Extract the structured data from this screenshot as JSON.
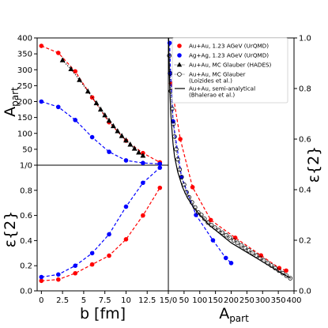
{
  "chart_data": {
    "type": "scatter",
    "panels": {
      "top_left": {
        "ylabel": "A_part",
        "xlim": [
          -0.5,
          15.0
        ],
        "ylim": [
          0,
          400
        ],
        "y_ticks": [
          "400",
          "350",
          "300",
          "250",
          "200",
          "150",
          "100",
          "50"
        ],
        "series": [
          {
            "name": "Au+Au, 1.23 AGeV (UrQMD)",
            "color": "#ff0000",
            "marker": "circle",
            "line": "dashed",
            "x": [
              0,
              2,
              4,
              6,
              8,
              10,
              12,
              14
            ],
            "y": [
              375,
              353,
              295,
              213,
              135,
              77,
              38,
              9
            ]
          },
          {
            "name": "Ag+Ag, 1.23 AGeV (UrQMD)",
            "color": "#0000ff",
            "marker": "circle",
            "line": "dashed",
            "x": [
              0,
              2,
              4,
              6,
              8,
              10,
              12,
              14
            ],
            "y": [
              200,
              183,
              142,
              88,
              42,
              15,
              7,
              4
            ]
          },
          {
            "name": "Au+Au, MC Glauber (HADES)",
            "color": "#000000",
            "marker": "triangle",
            "line": "dotted",
            "x": [
              2.5,
              3.5,
              4.5,
              5.5,
              6.5,
              7.0,
              7.5,
              8.0,
              8.5,
              9.0,
              9.5,
              10.0,
              10.5,
              11.0,
              11.5,
              12.0
            ],
            "y": [
              330,
              302,
              268,
              232,
              195,
              175,
              157,
              140,
              123,
              107,
              92,
              78,
              65,
              52,
              40,
              30
            ]
          }
        ]
      },
      "bottom_left": {
        "ylabel": "ε{2}",
        "xlabel": "b [fm]",
        "xlim": [
          -0.5,
          15.0
        ],
        "ylim": [
          0,
          1
        ],
        "y_ticks": [
          "1/0",
          "0.8",
          "0.6",
          "0.4",
          "0.2",
          "0.0"
        ],
        "x_ticks": [
          "0",
          "2.5",
          "5",
          "7.5",
          "10",
          "12.5",
          "15/0"
        ],
        "series": [
          {
            "name": "Au+Au, 1.23 AGeV (UrQMD)",
            "color": "#ff0000",
            "x": [
              0,
              2,
              4,
              6,
              8,
              10,
              12,
              14
            ],
            "y": [
              0.08,
              0.09,
              0.14,
              0.21,
              0.28,
              0.41,
              0.6,
              0.82
            ]
          },
          {
            "name": "Ag+Ag, 1.23 AGeV (UrQMD)",
            "color": "#0000ff",
            "x": [
              0,
              2,
              4,
              6,
              8,
              10,
              12,
              14
            ],
            "y": [
              0.11,
              0.13,
              0.2,
              0.3,
              0.45,
              0.67,
              0.86,
              0.98
            ]
          }
        ]
      },
      "right": {
        "ylabel": "ε{2}",
        "xlabel": "A_part",
        "xlim": [
          0,
          400
        ],
        "ylim": [
          0,
          1
        ],
        "x_ticks": [
          "50",
          "100",
          "150",
          "200",
          "250",
          "300",
          "350",
          "400"
        ],
        "y_ticks": [
          "1.0",
          "0.8",
          "0.6",
          "0.4",
          "0.2",
          "0.0"
        ],
        "series": [
          {
            "name": "Au+Au, 1.23 AGeV (UrQMD)",
            "color": "#ff0000",
            "x": [
              9,
              38,
              77,
              135,
              213,
              295,
              353,
              375
            ],
            "y": [
              0.82,
              0.6,
              0.41,
              0.28,
              0.21,
              0.14,
              0.09,
              0.08
            ]
          },
          {
            "name": "Ag+Ag, 1.23 AGeV (UrQMD)",
            "color": "#0000ff",
            "x": [
              4,
              7,
              15,
              42,
              88,
              142,
              183,
              200
            ],
            "y": [
              0.98,
              0.86,
              0.67,
              0.45,
              0.3,
              0.2,
              0.13,
              0.11
            ]
          },
          {
            "name": "Au+Au, MC Glauber (Loizides et al.)",
            "color": "#000000",
            "marker": "open-circle",
            "line": "dotted",
            "x": [
              3,
              5,
              8,
              12,
              16,
              20,
              25,
              30,
              36,
              42,
              50,
              58,
              66,
              75,
              85,
              95,
              105,
              115,
              126,
              137,
              148,
              160,
              172,
              184,
              196,
              208,
              220,
              232,
              244,
              256,
              268,
              280,
              292,
              304,
              316,
              328,
              340,
              352,
              364,
              376,
              388
            ],
            "y": [
              0.93,
              0.86,
              0.79,
              0.72,
              0.66,
              0.61,
              0.56,
              0.52,
              0.48,
              0.45,
              0.42,
              0.39,
              0.37,
              0.35,
              0.33,
              0.31,
              0.3,
              0.285,
              0.27,
              0.26,
              0.25,
              0.24,
              0.23,
              0.22,
              0.21,
              0.2,
              0.19,
              0.18,
              0.17,
              0.16,
              0.15,
              0.14,
              0.13,
              0.12,
              0.11,
              0.1,
              0.09,
              0.08,
              0.07,
              0.06,
              0.05
            ]
          },
          {
            "name": "Au+Au, semi-analytical (Bhalerao et al.)",
            "color": "#000000",
            "marker": "none",
            "line": "solid",
            "x": [
              1,
              2,
              4,
              7,
              10,
              15,
              20,
              30,
              45,
              60,
              80,
              100,
              130,
              160,
              200,
              240,
              280,
              320,
              360,
              390
            ],
            "y": [
              1.0,
              0.92,
              0.82,
              0.72,
              0.66,
              0.58,
              0.53,
              0.47,
              0.41,
              0.37,
              0.33,
              0.3,
              0.26,
              0.23,
              0.19,
              0.16,
              0.13,
              0.1,
              0.07,
              0.05
            ]
          }
        ]
      }
    },
    "legend": {
      "placement": "top-right",
      "entries": [
        {
          "label": "Au+Au, 1.23 AGeV (UrQMD)",
          "marker": "circle",
          "color": "#ff0000"
        },
        {
          "label": "Ag+Ag, 1.23 AGeV (UrQMD)",
          "marker": "circle",
          "color": "#0000ff"
        },
        {
          "label": "Au+Au, MC Glauber (HADES)",
          "marker": "triangle",
          "color": "#000000"
        },
        {
          "label": "Au+Au, MC Glauber",
          "label2": "(Loizides et al.)",
          "marker": "open-circle",
          "color": "#000000"
        },
        {
          "label": "Au+Au, semi-analytical",
          "label2": "(Bhalerao et al.)",
          "marker": "line",
          "color": "#000000"
        }
      ]
    }
  }
}
